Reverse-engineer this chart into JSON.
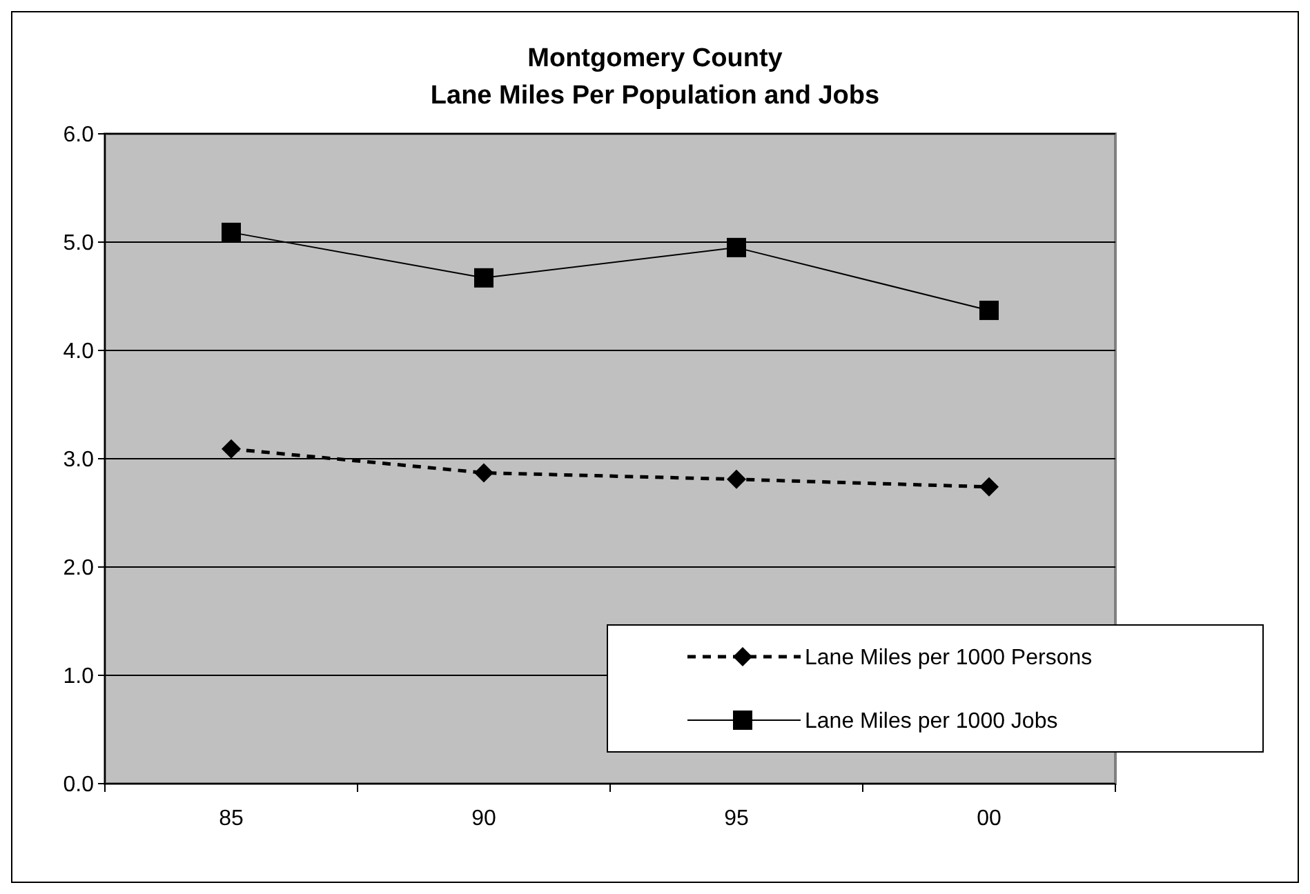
{
  "chart_data": {
    "type": "line",
    "title": "Montgomery County\nLane Miles Per Population and Jobs",
    "categories": [
      "85",
      "90",
      "95",
      "00"
    ],
    "series": [
      {
        "name": "Lane Miles per 1000 Persons",
        "color": "#000000",
        "values": [
          3.09,
          2.87,
          2.81,
          2.74
        ],
        "marker": "diamond",
        "line_style": "dashed"
      },
      {
        "name": "Lane Miles per 1000 Jobs",
        "color": "#000000",
        "values": [
          5.09,
          4.67,
          4.95,
          4.37
        ],
        "marker": "square",
        "line_style": "solid"
      }
    ],
    "ylim": [
      0,
      6
    ],
    "yticks": [
      {
        "value": 0,
        "label": "0.0"
      },
      {
        "value": 1,
        "label": "1.0"
      },
      {
        "value": 2,
        "label": "2.0"
      },
      {
        "value": 3,
        "label": "3.0"
      },
      {
        "value": 4,
        "label": "4.0"
      },
      {
        "value": 5,
        "label": "5.0"
      },
      {
        "value": 6,
        "label": "6.0"
      }
    ],
    "grid": "y",
    "legend": "bottom right"
  }
}
